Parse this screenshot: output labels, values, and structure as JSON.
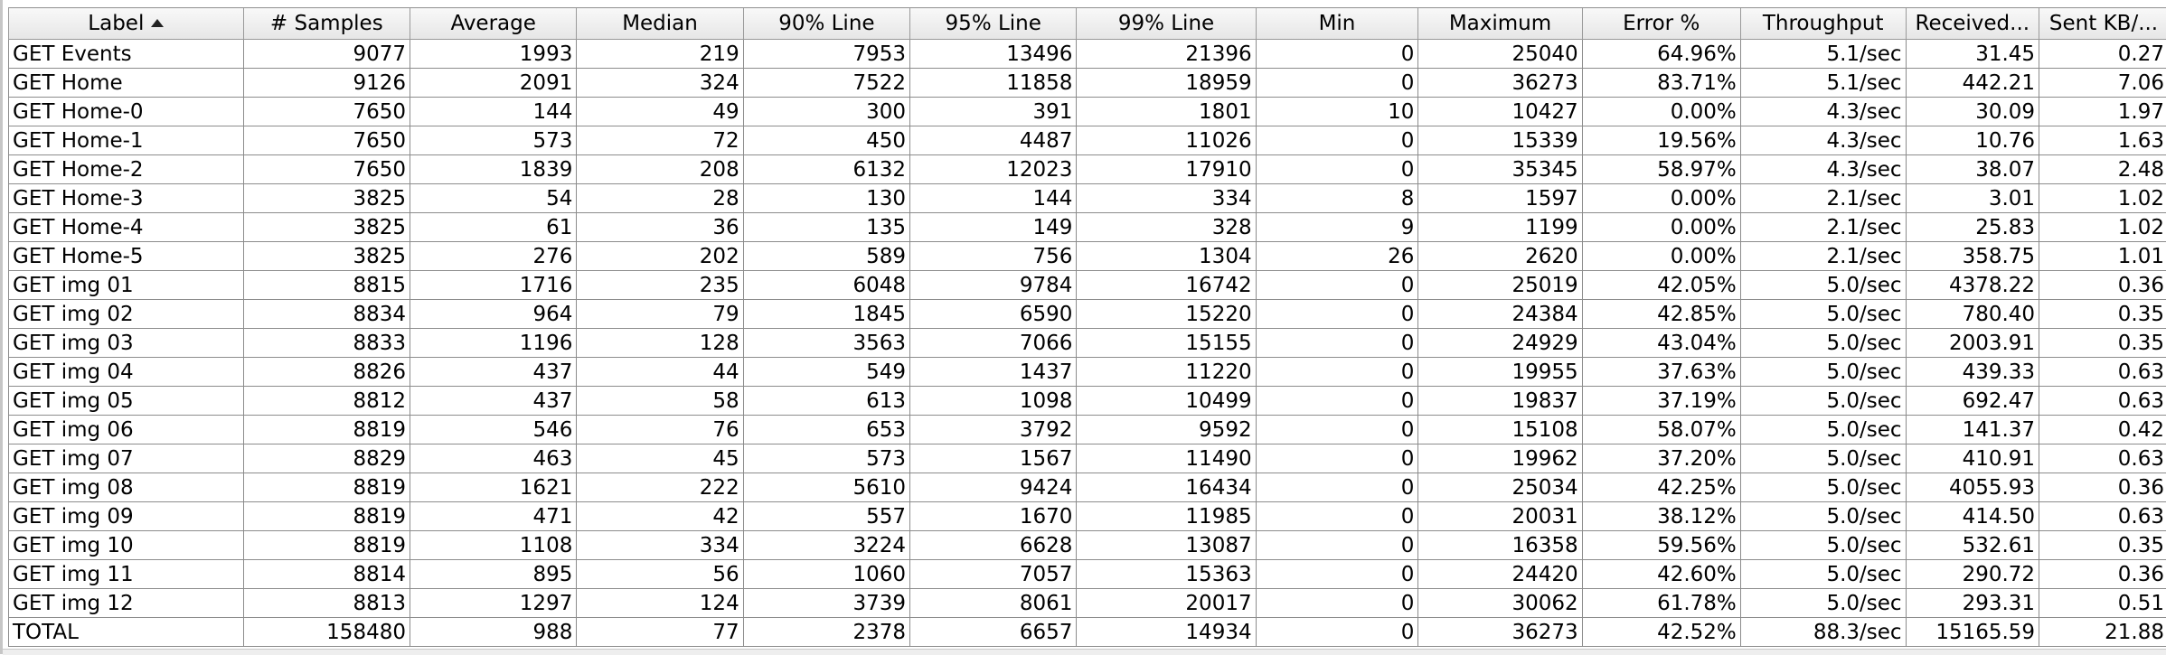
{
  "table": {
    "columns": [
      {
        "label": "Label",
        "align": "lbl",
        "sorted": "ascending"
      },
      {
        "label": "# Samples",
        "align": "num"
      },
      {
        "label": "Average",
        "align": "num"
      },
      {
        "label": "Median",
        "align": "num"
      },
      {
        "label": "90% Line",
        "align": "num"
      },
      {
        "label": "95% Line",
        "align": "num"
      },
      {
        "label": "99% Line",
        "align": "num"
      },
      {
        "label": "Min",
        "align": "num"
      },
      {
        "label": "Maximum",
        "align": "num"
      },
      {
        "label": "Error %",
        "align": "num"
      },
      {
        "label": "Throughput",
        "align": "num"
      },
      {
        "label": "Received...",
        "align": "num"
      },
      {
        "label": "Sent KB/...",
        "align": "num"
      }
    ],
    "rows": [
      [
        "GET Events",
        "9077",
        "1993",
        "219",
        "7953",
        "13496",
        "21396",
        "0",
        "25040",
        "64.96%",
        "5.1/sec",
        "31.45",
        "0.27"
      ],
      [
        "GET Home",
        "9126",
        "2091",
        "324",
        "7522",
        "11858",
        "18959",
        "0",
        "36273",
        "83.71%",
        "5.1/sec",
        "442.21",
        "7.06"
      ],
      [
        "GET Home-0",
        "7650",
        "144",
        "49",
        "300",
        "391",
        "1801",
        "10",
        "10427",
        "0.00%",
        "4.3/sec",
        "30.09",
        "1.97"
      ],
      [
        "GET Home-1",
        "7650",
        "573",
        "72",
        "450",
        "4487",
        "11026",
        "0",
        "15339",
        "19.56%",
        "4.3/sec",
        "10.76",
        "1.63"
      ],
      [
        "GET Home-2",
        "7650",
        "1839",
        "208",
        "6132",
        "12023",
        "17910",
        "0",
        "35345",
        "58.97%",
        "4.3/sec",
        "38.07",
        "2.48"
      ],
      [
        "GET Home-3",
        "3825",
        "54",
        "28",
        "130",
        "144",
        "334",
        "8",
        "1597",
        "0.00%",
        "2.1/sec",
        "3.01",
        "1.02"
      ],
      [
        "GET Home-4",
        "3825",
        "61",
        "36",
        "135",
        "149",
        "328",
        "9",
        "1199",
        "0.00%",
        "2.1/sec",
        "25.83",
        "1.02"
      ],
      [
        "GET Home-5",
        "3825",
        "276",
        "202",
        "589",
        "756",
        "1304",
        "26",
        "2620",
        "0.00%",
        "2.1/sec",
        "358.75",
        "1.01"
      ],
      [
        "GET img 01",
        "8815",
        "1716",
        "235",
        "6048",
        "9784",
        "16742",
        "0",
        "25019",
        "42.05%",
        "5.0/sec",
        "4378.22",
        "0.36"
      ],
      [
        "GET img 02",
        "8834",
        "964",
        "79",
        "1845",
        "6590",
        "15220",
        "0",
        "24384",
        "42.85%",
        "5.0/sec",
        "780.40",
        "0.35"
      ],
      [
        "GET img 03",
        "8833",
        "1196",
        "128",
        "3563",
        "7066",
        "15155",
        "0",
        "24929",
        "43.04%",
        "5.0/sec",
        "2003.91",
        "0.35"
      ],
      [
        "GET img 04",
        "8826",
        "437",
        "44",
        "549",
        "1437",
        "11220",
        "0",
        "19955",
        "37.63%",
        "5.0/sec",
        "439.33",
        "0.63"
      ],
      [
        "GET img 05",
        "8812",
        "437",
        "58",
        "613",
        "1098",
        "10499",
        "0",
        "19837",
        "37.19%",
        "5.0/sec",
        "692.47",
        "0.63"
      ],
      [
        "GET img 06",
        "8819",
        "546",
        "76",
        "653",
        "3792",
        "9592",
        "0",
        "15108",
        "58.07%",
        "5.0/sec",
        "141.37",
        "0.42"
      ],
      [
        "GET img 07",
        "8829",
        "463",
        "45",
        "573",
        "1567",
        "11490",
        "0",
        "19962",
        "37.20%",
        "5.0/sec",
        "410.91",
        "0.63"
      ],
      [
        "GET img 08",
        "8819",
        "1621",
        "222",
        "5610",
        "9424",
        "16434",
        "0",
        "25034",
        "42.25%",
        "5.0/sec",
        "4055.93",
        "0.36"
      ],
      [
        "GET img 09",
        "8819",
        "471",
        "42",
        "557",
        "1670",
        "11985",
        "0",
        "20031",
        "38.12%",
        "5.0/sec",
        "414.50",
        "0.63"
      ],
      [
        "GET img 10",
        "8819",
        "1108",
        "334",
        "3224",
        "6628",
        "13087",
        "0",
        "16358",
        "59.56%",
        "5.0/sec",
        "532.61",
        "0.35"
      ],
      [
        "GET img 11",
        "8814",
        "895",
        "56",
        "1060",
        "7057",
        "15363",
        "0",
        "24420",
        "42.60%",
        "5.0/sec",
        "290.72",
        "0.36"
      ],
      [
        "GET img 12",
        "8813",
        "1297",
        "124",
        "3739",
        "8061",
        "20017",
        "0",
        "30062",
        "61.78%",
        "5.0/sec",
        "293.31",
        "0.51"
      ],
      [
        "TOTAL",
        "158480",
        "988",
        "77",
        "2378",
        "6657",
        "14934",
        "0",
        "36273",
        "42.52%",
        "88.3/sec",
        "15165.59",
        "21.88"
      ]
    ]
  }
}
